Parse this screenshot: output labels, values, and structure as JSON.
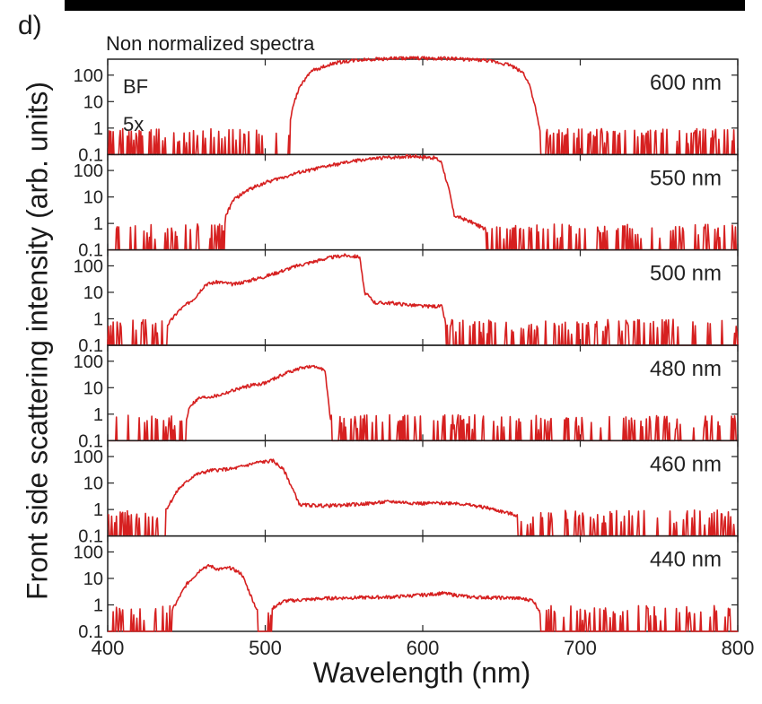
{
  "panel_letter": "d)",
  "figure_title": "Non normalized spectra",
  "annotations": {
    "illumination": "BF",
    "objective": "5x"
  },
  "colors": {
    "trace": "#d62020",
    "axis": "#222222"
  },
  "chart_data": {
    "type": "line",
    "title": "Non normalized spectra",
    "xlabel": "Wavelength (nm)",
    "ylabel": "Front side scattering intensity (arb. units)",
    "x_scale": "linear",
    "y_scale": "log",
    "xlim": [
      400,
      800
    ],
    "ylim": [
      0.1,
      400
    ],
    "x_ticks": [
      400,
      500,
      600,
      700,
      800
    ],
    "y_ticks": [
      0.1,
      1,
      10,
      100
    ],
    "y_tick_labels": [
      "0.1",
      "1",
      "10",
      "100"
    ],
    "grid": false,
    "panels": [
      {
        "label": "600 nm",
        "noise_seed": 1,
        "points": [
          [
            400,
            0.1
          ],
          [
            515,
            0.12
          ],
          [
            516,
            2
          ],
          [
            518,
            8
          ],
          [
            522,
            40
          ],
          [
            530,
            150
          ],
          [
            545,
            300
          ],
          [
            560,
            380
          ],
          [
            580,
            430
          ],
          [
            600,
            440
          ],
          [
            620,
            420
          ],
          [
            640,
            360
          ],
          [
            655,
            250
          ],
          [
            664,
            120
          ],
          [
            668,
            40
          ],
          [
            671,
            8
          ],
          [
            674,
            1
          ],
          [
            676,
            0.3
          ],
          [
            680,
            0.1
          ],
          [
            800,
            0.1
          ]
        ]
      },
      {
        "label": "550 nm",
        "noise_seed": 2,
        "points": [
          [
            400,
            0.1
          ],
          [
            473,
            0.12
          ],
          [
            475,
            2
          ],
          [
            480,
            8
          ],
          [
            490,
            20
          ],
          [
            500,
            35
          ],
          [
            520,
            80
          ],
          [
            540,
            150
          ],
          [
            560,
            250
          ],
          [
            580,
            320
          ],
          [
            595,
            350
          ],
          [
            608,
            300
          ],
          [
            612,
            200
          ],
          [
            617,
            15
          ],
          [
            620,
            2
          ],
          [
            630,
            1.2
          ],
          [
            640,
            0.6
          ],
          [
            650,
            0.2
          ],
          [
            660,
            0.1
          ],
          [
            800,
            0.1
          ]
        ]
      },
      {
        "label": "500 nm",
        "noise_seed": 3,
        "points": [
          [
            400,
            0.1
          ],
          [
            436,
            0.12
          ],
          [
            438,
            0.6
          ],
          [
            445,
            2
          ],
          [
            455,
            6
          ],
          [
            462,
            20
          ],
          [
            470,
            25
          ],
          [
            480,
            20
          ],
          [
            500,
            40
          ],
          [
            520,
            100
          ],
          [
            540,
            200
          ],
          [
            550,
            250
          ],
          [
            560,
            220
          ],
          [
            563,
            10
          ],
          [
            570,
            4
          ],
          [
            580,
            4
          ],
          [
            600,
            3
          ],
          [
            612,
            3
          ],
          [
            616,
            0.3
          ],
          [
            620,
            0.1
          ],
          [
            800,
            0.1
          ]
        ]
      },
      {
        "label": "480 nm",
        "noise_seed": 4,
        "points": [
          [
            400,
            0.4
          ],
          [
            450,
            0.6
          ],
          [
            452,
            2
          ],
          [
            458,
            4
          ],
          [
            470,
            5
          ],
          [
            480,
            8
          ],
          [
            490,
            12
          ],
          [
            500,
            15
          ],
          [
            515,
            40
          ],
          [
            525,
            60
          ],
          [
            535,
            60
          ],
          [
            538,
            40
          ],
          [
            541,
            1
          ],
          [
            543,
            0.3
          ],
          [
            800,
            0.4
          ]
        ]
      },
      {
        "label": "460 nm",
        "noise_seed": 5,
        "points": [
          [
            400,
            0.1
          ],
          [
            435,
            0.12
          ],
          [
            437,
            1
          ],
          [
            445,
            6
          ],
          [
            455,
            20
          ],
          [
            465,
            30
          ],
          [
            480,
            35
          ],
          [
            495,
            60
          ],
          [
            505,
            70
          ],
          [
            512,
            30
          ],
          [
            518,
            5
          ],
          [
            522,
            1.5
          ],
          [
            540,
            1.4
          ],
          [
            560,
            1.6
          ],
          [
            580,
            2
          ],
          [
            600,
            1.7
          ],
          [
            620,
            1.8
          ],
          [
            640,
            1.2
          ],
          [
            660,
            0.6
          ],
          [
            670,
            0.3
          ],
          [
            680,
            0.15
          ],
          [
            800,
            0.1
          ]
        ]
      },
      {
        "label": "440 nm",
        "noise_seed": 6,
        "points": [
          [
            400,
            0.1
          ],
          [
            430,
            0.12
          ],
          [
            440,
            0.5
          ],
          [
            450,
            6
          ],
          [
            460,
            25
          ],
          [
            465,
            30
          ],
          [
            470,
            22
          ],
          [
            478,
            25
          ],
          [
            485,
            15
          ],
          [
            490,
            3
          ],
          [
            495,
            0.6
          ],
          [
            500,
            0.1
          ],
          [
            505,
            0.8
          ],
          [
            512,
            1.4
          ],
          [
            540,
            1.8
          ],
          [
            580,
            2
          ],
          [
            605,
            2.5
          ],
          [
            612,
            2.8
          ],
          [
            630,
            2
          ],
          [
            660,
            1.8
          ],
          [
            670,
            1.5
          ],
          [
            675,
            0.5
          ],
          [
            680,
            0.15
          ],
          [
            800,
            0.1
          ]
        ]
      }
    ]
  }
}
